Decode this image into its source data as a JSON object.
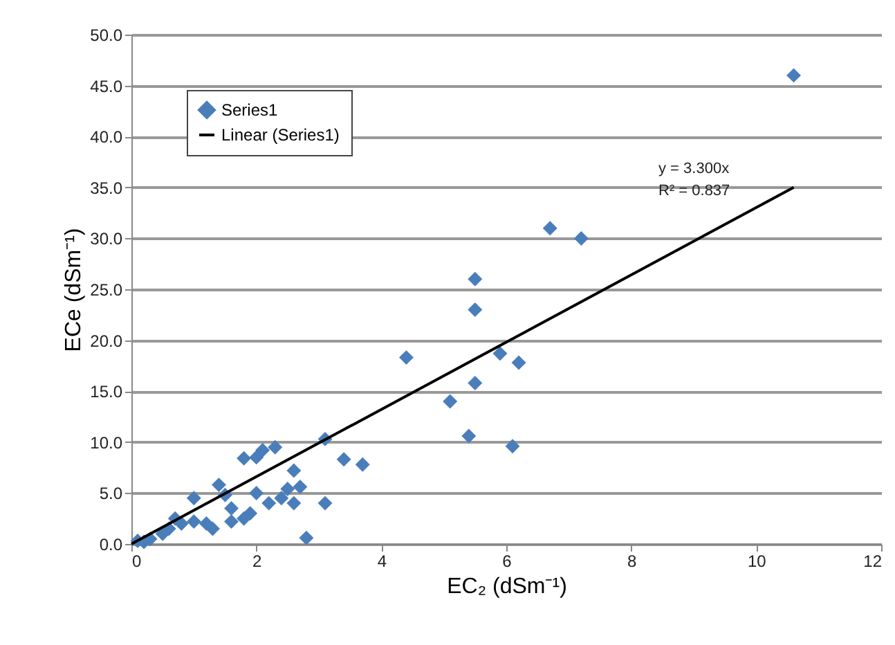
{
  "chart_data": {
    "type": "scatter",
    "xlabel": "EC₂ (dSm⁻¹)",
    "ylabel": "ECe (dSm⁻¹)",
    "xlim": [
      0,
      12
    ],
    "xticks": [
      0,
      2,
      4,
      6,
      8,
      10,
      12
    ],
    "ylim": [
      0,
      50
    ],
    "yticks": [
      {
        "value": 0,
        "label": "0.0"
      },
      {
        "value": 5,
        "label": "5.0"
      },
      {
        "value": 10,
        "label": "10.0"
      },
      {
        "value": 15,
        "label": "15.0"
      },
      {
        "value": 20,
        "label": "20.0"
      },
      {
        "value": 25,
        "label": "25.0"
      },
      {
        "value": 30,
        "label": "30.0"
      },
      {
        "value": 35,
        "label": "35.0"
      },
      {
        "value": 40,
        "label": "40.0"
      },
      {
        "value": 45,
        "label": "45.0"
      },
      {
        "value": 50,
        "label": "50.0"
      }
    ],
    "grid": "y",
    "legend": "top left",
    "annotations": [
      "y = 3.300x",
      "R² = 0.837"
    ],
    "series": [
      {
        "name": "Series1",
        "marker": "diamond",
        "color": "#4a7ebb",
        "x": [
          10.6,
          6.7,
          7.2,
          5.5,
          5.5,
          4.4,
          5.9,
          6.2,
          5.5,
          5.1,
          5.4,
          6.1,
          3.1,
          3.4,
          3.7,
          3.1,
          2.8,
          2.3,
          2.1,
          1.8,
          2.0,
          2.6,
          2.7,
          2.5,
          2.0,
          2.2,
          2.4,
          1.9,
          1.8,
          1.4,
          1.5,
          1.6,
          1.0,
          1.2,
          1.3,
          1.0,
          0.8,
          0.6,
          0.5,
          0.3,
          0.1,
          0.2,
          0.7,
          1.6,
          2.6
        ],
        "values": [
          46,
          31,
          30,
          26,
          23,
          18.3,
          18.7,
          17.8,
          15.8,
          14,
          10.6,
          9.6,
          10.3,
          8.3,
          7.8,
          4,
          0.6,
          9.5,
          9.2,
          8.4,
          8.5,
          7.2,
          5.6,
          5.4,
          5.0,
          4.0,
          4.5,
          3.0,
          2.5,
          5.8,
          4.8,
          3.5,
          4.5,
          2.0,
          1.5,
          2.2,
          2.0,
          1.5,
          1.0,
          0.5,
          0.3,
          0.2,
          2.5,
          2.2,
          4.0
        ]
      },
      {
        "name": "Linear (Series1)",
        "type": "line",
        "line_style": "solid",
        "marker": "none",
        "color": "#000000",
        "x": [
          0,
          10.6
        ],
        "values": [
          0,
          35.0
        ]
      }
    ]
  }
}
